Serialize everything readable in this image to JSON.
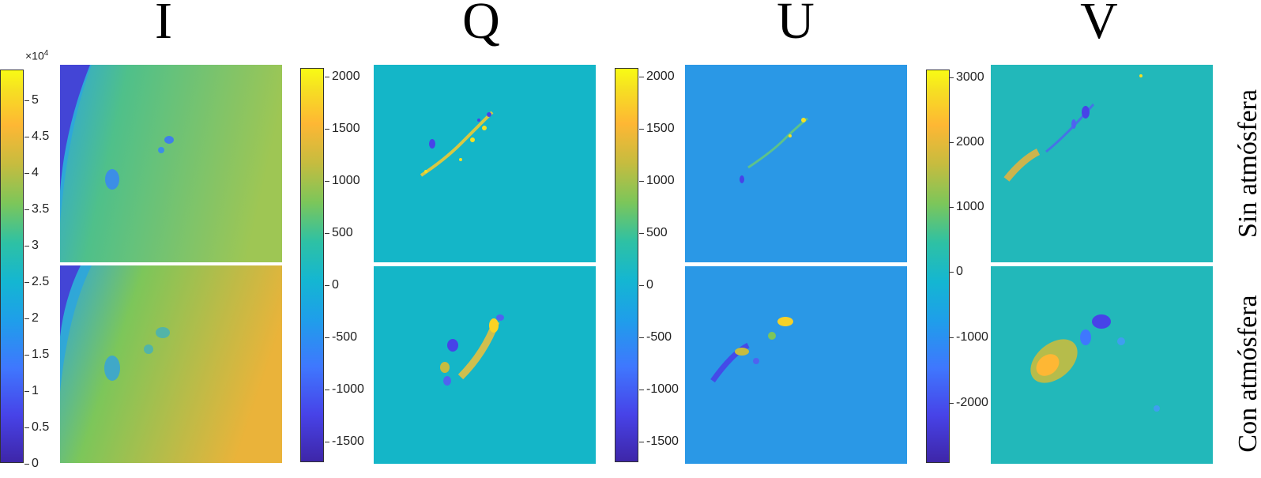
{
  "columns": [
    {
      "title": "I",
      "ticks": [
        "5",
        "4.5",
        "4",
        "3.5",
        "3",
        "2.5",
        "2",
        "1.5",
        "1",
        "0.5",
        "0"
      ],
      "multiplier": "×10",
      "exponent": "4"
    },
    {
      "title": "Q",
      "ticks": [
        "2000",
        "1500",
        "1000",
        "500",
        "0",
        "-500",
        "-1000",
        "-1500"
      ]
    },
    {
      "title": "U",
      "ticks": [
        "2000",
        "1500",
        "1000",
        "500",
        "0",
        "-500",
        "-1000",
        "-1500"
      ]
    },
    {
      "title": "V",
      "ticks": [
        "3000",
        "2000",
        "1000",
        "0",
        "-1000",
        "-2000"
      ]
    }
  ],
  "rows": [
    {
      "label": "Sin atmósfera"
    },
    {
      "label": "Con atmósfera"
    }
  ],
  "colormap": [
    "#3e26a8",
    "#4743e8",
    "#3f77fe",
    "#1f9eea",
    "#14b6d2",
    "#2ec1a4",
    "#7cc65a",
    "#c6bc3f",
    "#feb734",
    "#f6e022",
    "#f9fb14"
  ]
}
